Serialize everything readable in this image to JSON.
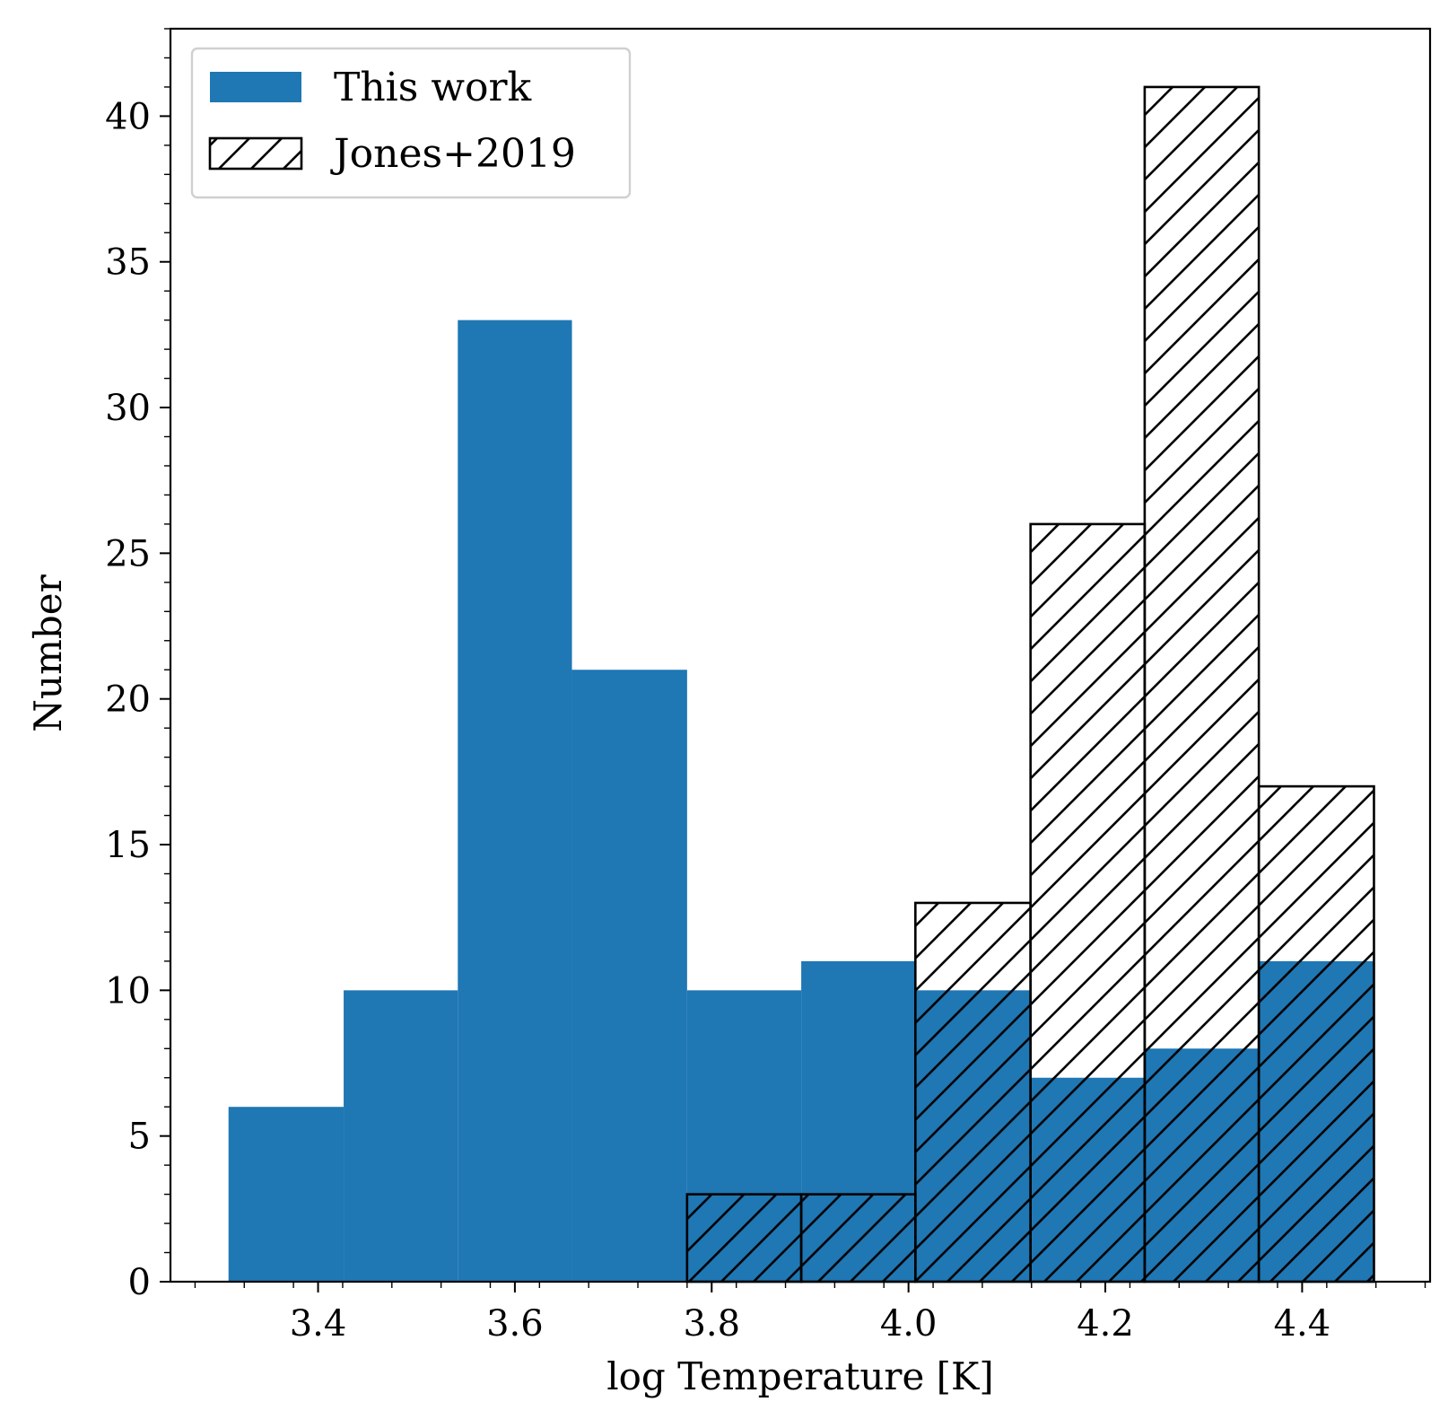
{
  "chart_data": {
    "type": "bar",
    "xlabel": "log Temperature [K]",
    "ylabel": "Number",
    "xlim": [
      3.25,
      4.53
    ],
    "ylim": [
      0,
      43
    ],
    "xticks": [
      "3.4",
      "3.6",
      "3.8",
      "4.0",
      "4.2",
      "4.4"
    ],
    "yticks": [
      "0",
      "5",
      "10",
      "15",
      "20",
      "25",
      "30",
      "35",
      "40"
    ],
    "bin_edges": [
      3.309,
      3.426,
      3.542,
      3.658,
      3.775,
      3.891,
      4.007,
      4.124,
      4.24,
      4.356,
      4.473
    ],
    "series": [
      {
        "name": "This work",
        "style": "filled",
        "color": "#1f77b4",
        "values": [
          6,
          10,
          33,
          21,
          10,
          11,
          10,
          7,
          8,
          11
        ]
      },
      {
        "name": "Jones+2019",
        "style": "hatched",
        "color": "#000000",
        "values": [
          0,
          0,
          0,
          0,
          3,
          3,
          13,
          26,
          41,
          17
        ]
      }
    ],
    "legend_position": "upper-left",
    "grid": false
  }
}
